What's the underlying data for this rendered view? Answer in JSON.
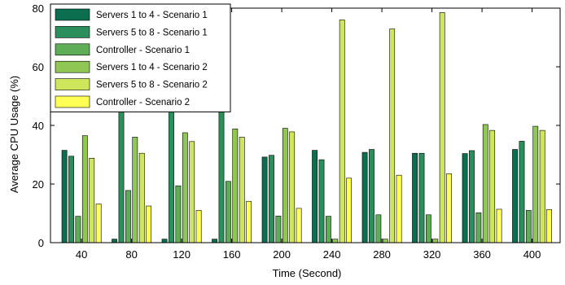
{
  "chart_data": {
    "type": "bar",
    "xlabel": "Time (Second)",
    "ylabel": "Average CPU Usage (%)",
    "ylim": [
      0,
      80
    ],
    "yticks": [
      0,
      20,
      40,
      60,
      80
    ],
    "categories": [
      "40",
      "80",
      "120",
      "160",
      "200",
      "240",
      "280",
      "320",
      "360",
      "400"
    ],
    "legend_position": "top-left",
    "grid": false,
    "series": [
      {
        "name": "Servers 1 to 4 - Scenario 1",
        "color": "#0b6e4f",
        "values": [
          31.5,
          1.2,
          1.2,
          1.2,
          29.2,
          31.5,
          30.8,
          30.5,
          30.4,
          31.8
        ]
      },
      {
        "name": "Servers 5 to 8 - Scenario 1",
        "color": "#2a8f5a",
        "values": [
          29.5,
          80,
          80,
          59.5,
          29.8,
          28.3,
          31.8,
          30.5,
          31.4,
          34.6
        ]
      },
      {
        "name": "Controller - Scenario 1",
        "color": "#5fad56",
        "values": [
          9.0,
          17.8,
          19.4,
          20.9,
          9.1,
          9.0,
          9.5,
          9.5,
          10.2,
          11.0
        ]
      },
      {
        "name": "Servers 1 to 4 - Scenario 2",
        "color": "#8fc654",
        "values": [
          36.5,
          36.0,
          37.5,
          38.8,
          39.0,
          1.2,
          1.2,
          1.2,
          40.3,
          39.7
        ]
      },
      {
        "name": "Servers 5 to 8 - Scenario 2",
        "color": "#cde65c",
        "values": [
          28.8,
          30.5,
          34.5,
          36.0,
          37.8,
          76.0,
          72.9,
          78.5,
          38.3,
          38.3
        ]
      },
      {
        "name": "Controller - Scenario 2",
        "color": "#ffff55",
        "values": [
          13.2,
          12.5,
          11.0,
          14.1,
          11.7,
          22.0,
          23.0,
          23.5,
          11.4,
          11.3
        ]
      }
    ]
  }
}
